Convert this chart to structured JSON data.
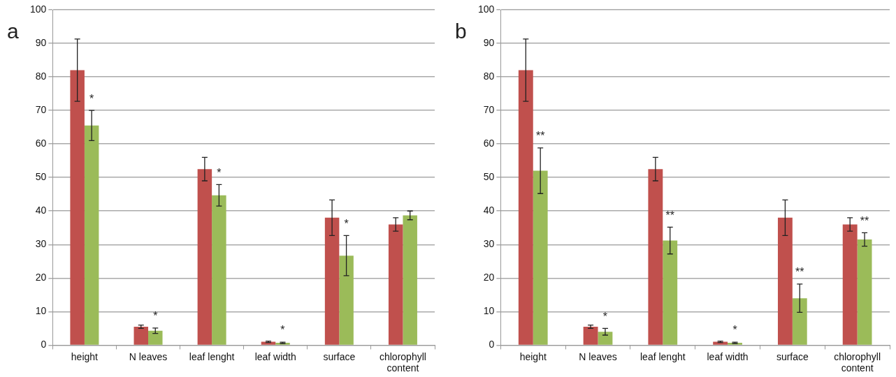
{
  "chart_data": [
    {
      "type": "bar",
      "title": "a",
      "categories": [
        "height",
        "N leaves",
        "leaf lenght",
        "leaf width",
        "surface",
        "chlorophyll content"
      ],
      "series": [
        {
          "color": "#c0504d",
          "values": [
            82,
            5.5,
            52.5,
            1,
            38,
            36
          ],
          "errors": [
            9.3,
            0.5,
            3.5,
            0.2,
            5.3,
            2
          ]
        },
        {
          "color": "#9bbb59",
          "values": [
            65.5,
            4.3,
            44.7,
            0.7,
            26.7,
            38.7
          ],
          "errors": [
            4.5,
            0.8,
            3.2,
            0.2,
            6,
            1.3
          ]
        }
      ],
      "annotations": [
        {
          "text": "*",
          "x": "height",
          "y": 65.5
        },
        {
          "text": "*",
          "x": "N leaves",
          "y": 4.3
        },
        {
          "text": "*",
          "x": "leaf lenght",
          "y": 44.7
        },
        {
          "text": "*",
          "x": "leaf width",
          "y": 0.7
        },
        {
          "text": "*",
          "x": "surface",
          "y": 26.7
        }
      ],
      "ylim": [
        0,
        100
      ],
      "yticks": [
        0,
        10,
        20,
        30,
        40,
        50,
        60,
        70,
        80,
        90,
        100
      ],
      "grid": "y",
      "legend": false
    },
    {
      "type": "bar",
      "title": "b",
      "categories": [
        "height",
        "N leaves",
        "leaf lenght",
        "leaf width",
        "surface",
        "chlorophyll content"
      ],
      "series": [
        {
          "color": "#c0504d",
          "values": [
            82,
            5.5,
            52.5,
            1,
            38,
            36
          ],
          "errors": [
            9.3,
            0.5,
            3.5,
            0.2,
            5.3,
            2
          ]
        },
        {
          "color": "#9bbb59",
          "values": [
            52,
            4,
            31.2,
            0.7,
            14,
            31.5
          ],
          "errors": [
            6.8,
            1,
            4,
            0.2,
            4.2,
            2
          ]
        }
      ],
      "annotations": [
        {
          "text": "**",
          "x": "height",
          "y": 52
        },
        {
          "text": "*",
          "x": "N leaves",
          "y": 4
        },
        {
          "text": "**",
          "x": "leaf lenght",
          "y": 31.2
        },
        {
          "text": "*",
          "x": "leaf width",
          "y": 0.7
        },
        {
          "text": "**",
          "x": "surface",
          "y": 14
        },
        {
          "text": "**",
          "x": "chlorophyll content",
          "y": 31.5
        }
      ],
      "ylim": [
        0,
        100
      ],
      "yticks": [
        0,
        10,
        20,
        30,
        40,
        50,
        60,
        70,
        80,
        90,
        100
      ],
      "grid": "y",
      "legend": false
    }
  ]
}
